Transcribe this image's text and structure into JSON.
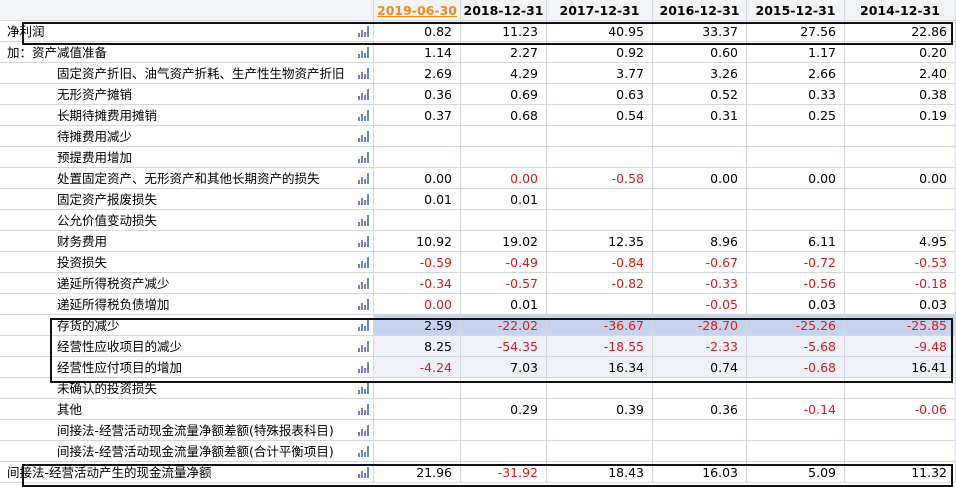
{
  "header": {
    "columns": [
      "2019-06-30",
      "2018-12-31",
      "2017-12-31",
      "2016-12-31",
      "2015-12-31",
      "2014-12-31"
    ]
  },
  "rows": [
    {
      "label": "净利润",
      "indent": false,
      "values": [
        "0.82",
        "11.23",
        "40.95",
        "33.37",
        "27.56",
        "22.86"
      ]
    },
    {
      "label": "加：资产减值准备",
      "indent": false,
      "values": [
        "1.14",
        "2.27",
        "0.92",
        "0.60",
        "1.17",
        "0.20"
      ]
    },
    {
      "label": "固定资产折旧、油气资产折耗、生产性生物资产折旧",
      "indent": true,
      "values": [
        "2.69",
        "4.29",
        "3.77",
        "3.26",
        "2.66",
        "2.40"
      ]
    },
    {
      "label": "无形资产摊销",
      "indent": true,
      "values": [
        "0.36",
        "0.69",
        "0.63",
        "0.52",
        "0.33",
        "0.38"
      ]
    },
    {
      "label": "长期待摊费用摊销",
      "indent": true,
      "values": [
        "0.37",
        "0.68",
        "0.54",
        "0.31",
        "0.25",
        "0.19"
      ]
    },
    {
      "label": "待摊费用减少",
      "indent": true,
      "values": [
        "",
        "",
        "",
        "",
        "",
        ""
      ]
    },
    {
      "label": "预提费用增加",
      "indent": true,
      "values": [
        "",
        "",
        "",
        "",
        "",
        ""
      ]
    },
    {
      "label": "处置固定资产、无形资产和其他长期资产的损失",
      "indent": true,
      "values": [
        "0.00",
        "0.00",
        "-0.58",
        "0.00",
        "0.00",
        "0.00"
      ]
    },
    {
      "label": "固定资产报废损失",
      "indent": true,
      "values": [
        "0.01",
        "0.01",
        "",
        "",
        "",
        ""
      ]
    },
    {
      "label": "公允价值变动损失",
      "indent": true,
      "values": [
        "",
        "",
        "",
        "",
        "",
        ""
      ]
    },
    {
      "label": "财务费用",
      "indent": true,
      "values": [
        "10.92",
        "19.02",
        "12.35",
        "8.96",
        "6.11",
        "4.95"
      ]
    },
    {
      "label": "投资损失",
      "indent": true,
      "values": [
        "-0.59",
        "-0.49",
        "-0.84",
        "-0.67",
        "-0.72",
        "-0.53"
      ]
    },
    {
      "label": "递延所得税资产减少",
      "indent": true,
      "values": [
        "-0.34",
        "-0.57",
        "-0.82",
        "-0.33",
        "-0.56",
        "-0.18"
      ]
    },
    {
      "label": "递延所得税负债增加",
      "indent": true,
      "values": [
        "0.00",
        "0.01",
        "",
        "-0.05",
        "0.03",
        "0.03"
      ]
    },
    {
      "label": "存货的减少",
      "indent": true,
      "values": [
        "2.59",
        "-22.02",
        "-36.67",
        "-28.70",
        "-25.26",
        "-25.85"
      ]
    },
    {
      "label": "经营性应收项目的减少",
      "indent": true,
      "values": [
        "8.25",
        "-54.35",
        "-18.55",
        "-2.33",
        "-5.68",
        "-9.48"
      ]
    },
    {
      "label": "经营性应付项目的增加",
      "indent": true,
      "values": [
        "-4.24",
        "7.03",
        "16.34",
        "0.74",
        "-0.68",
        "16.41"
      ]
    },
    {
      "label": "未确认的投资损失",
      "indent": true,
      "values": [
        "",
        "",
        "",
        "",
        "",
        ""
      ]
    },
    {
      "label": "其他",
      "indent": true,
      "values": [
        "",
        "0.29",
        "0.39",
        "0.36",
        "-0.14",
        "-0.06"
      ]
    },
    {
      "label": "间接法-经营活动现金流量净额差额(特殊报表科目)",
      "indent": true,
      "values": [
        "",
        "",
        "",
        "",
        "",
        ""
      ]
    },
    {
      "label": "间接法-经营活动现金流量净额差额(合计平衡项目)",
      "indent": true,
      "values": [
        "",
        "",
        "",
        "",
        "",
        ""
      ]
    },
    {
      "label": "间接法-经营活动产生的现金流量净额",
      "indent": false,
      "values": [
        "21.96",
        "-31.92",
        "18.43",
        "16.03",
        "5.09",
        "11.32"
      ]
    }
  ],
  "colors": {
    "negative": "#d21d1d",
    "current_period": "#f08a1c",
    "selected_row": "#c5d3ee",
    "chart_icon": "#6a86c6"
  },
  "icons": {
    "row_chart": "bar-chart-icon"
  }
}
